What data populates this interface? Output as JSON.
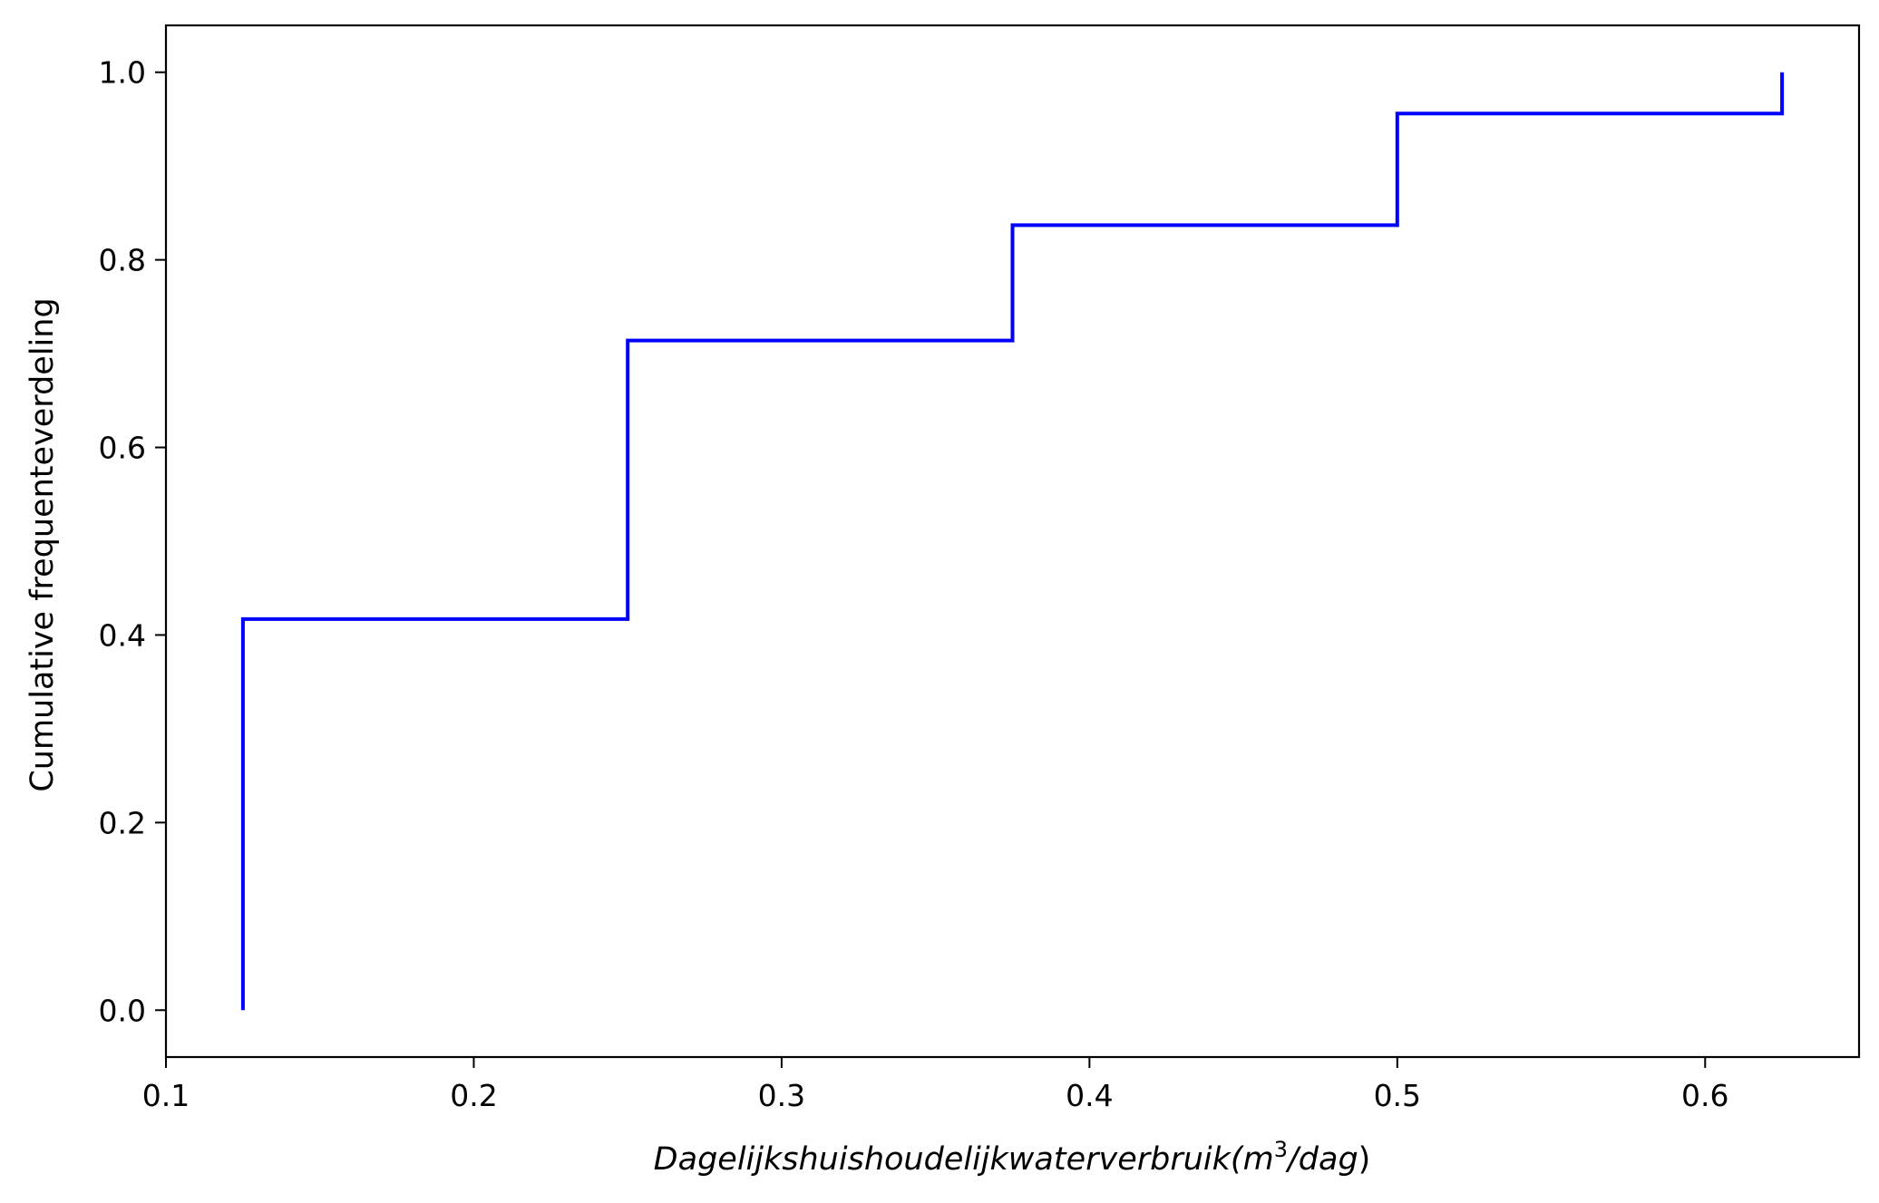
{
  "chart_data": {
    "type": "line",
    "step": "post",
    "xlabel": {
      "prefix": "Dagelijkshuishoudelijkwaterverbruik(",
      "unit_base": "m",
      "unit_exponent": "3",
      "unit_suffix": "/dag",
      "suffix": ")"
    },
    "ylabel": "Cumulative frequenteverdeling",
    "xlim": [
      0.1,
      0.65
    ],
    "ylim": [
      -0.05,
      1.05
    ],
    "xticks": [
      0.1,
      0.2,
      0.3,
      0.4,
      0.5,
      0.6
    ],
    "xtick_labels": [
      "0.1",
      "0.2",
      "0.3",
      "0.4",
      "0.5",
      "0.6"
    ],
    "yticks": [
      0.0,
      0.2,
      0.4,
      0.6,
      0.8,
      1.0
    ],
    "ytick_labels": [
      "0.0",
      "0.2",
      "0.4",
      "0.6",
      "0.8",
      "1.0"
    ],
    "grid": false,
    "series": [
      {
        "color": "#0000ff",
        "x": [
          0.125,
          0.125,
          0.25,
          0.25,
          0.375,
          0.375,
          0.5,
          0.5,
          0.625,
          0.625
        ],
        "y": [
          0.0,
          0.417,
          0.417,
          0.714,
          0.714,
          0.837,
          0.837,
          0.956,
          0.956,
          1.0
        ]
      }
    ]
  }
}
